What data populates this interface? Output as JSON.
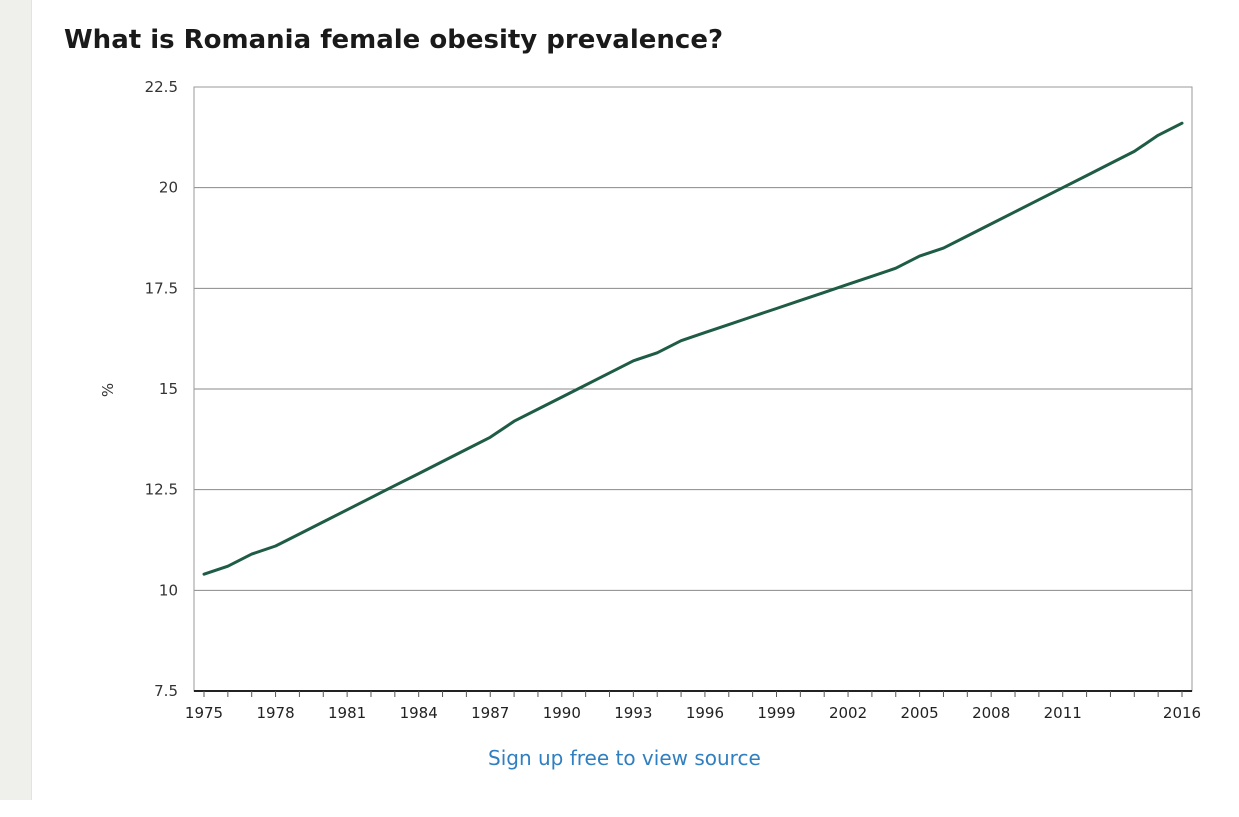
{
  "page": {
    "title": "What is Romania female obesity prevalence?",
    "source_link": "Sign up free to view source"
  },
  "chart_data": {
    "type": "line",
    "title": "What is Romania female obesity prevalence?",
    "xlabel": "",
    "ylabel": "%",
    "xlim": [
      1975,
      2016
    ],
    "ylim": [
      7.5,
      22.5
    ],
    "yticks": [
      "7.5",
      "10",
      "12.5",
      "15",
      "17.5",
      "20",
      "22.5"
    ],
    "xticks": [
      "1975",
      "1978",
      "1981",
      "1984",
      "1987",
      "1990",
      "1993",
      "1996",
      "1999",
      "2002",
      "2005",
      "2008",
      "2011",
      "2016"
    ],
    "grid": true,
    "line_color": "#1f5c45",
    "series": [
      {
        "x": [
          1975,
          1976,
          1977,
          1978,
          1979,
          1980,
          1981,
          1982,
          1983,
          1984,
          1985,
          1986,
          1987,
          1988,
          1989,
          1990,
          1991,
          1992,
          1993,
          1994,
          1995,
          1996,
          1997,
          1998,
          1999,
          2000,
          2001,
          2002,
          2003,
          2004,
          2005,
          2006,
          2007,
          2008,
          2009,
          2010,
          2011,
          2012,
          2013,
          2014,
          2015,
          2016
        ],
        "values": [
          10.4,
          10.6,
          10.9,
          11.1,
          11.4,
          11.7,
          12.0,
          12.3,
          12.6,
          12.9,
          13.2,
          13.5,
          13.8,
          14.2,
          14.5,
          14.8,
          15.1,
          15.4,
          15.7,
          15.9,
          16.2,
          16.4,
          16.6,
          16.8,
          17.0,
          17.2,
          17.4,
          17.6,
          17.8,
          18.0,
          18.3,
          18.5,
          18.8,
          19.1,
          19.4,
          19.7,
          20.0,
          20.3,
          20.6,
          20.9,
          21.3,
          21.6
        ]
      }
    ]
  }
}
